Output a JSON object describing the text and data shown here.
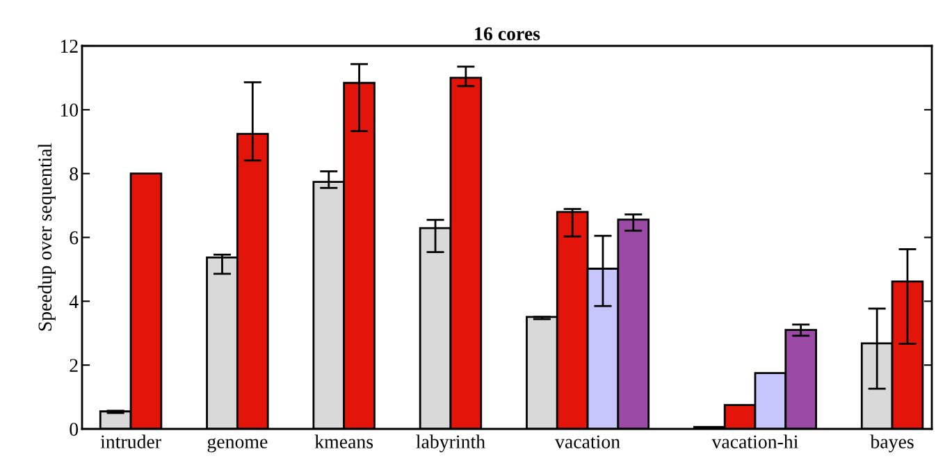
{
  "chart_data": {
    "type": "bar",
    "title": "16 cores",
    "ylabel": "Speedup over sequential",
    "categories": [
      "intruder",
      "genome",
      "kmeans",
      "labyrinth",
      "vacation",
      "vacation-hi",
      "bayes"
    ],
    "series": [
      {
        "color": "#d9d9d9",
        "values": [
          0.55,
          5.37,
          7.74,
          6.29,
          3.51,
          0.06,
          2.68
        ],
        "errors": [
          [
            0.5,
            0.57
          ],
          [
            4.86,
            5.46
          ],
          [
            7.55,
            8.07
          ],
          [
            5.54,
            6.55
          ],
          [
            3.44,
            3.51
          ],
          null,
          [
            1.26,
            3.77
          ]
        ]
      },
      {
        "color": "#e3140a",
        "values": [
          8.0,
          9.24,
          10.84,
          11.0,
          6.8,
          0.75,
          4.62
        ],
        "errors": [
          null,
          [
            8.41,
            10.86
          ],
          [
            9.33,
            11.43
          ],
          [
            10.74,
            11.35
          ],
          [
            6.03,
            6.89
          ],
          null,
          [
            2.67,
            5.63
          ]
        ]
      },
      {
        "color": "#c6c6fc",
        "values": [
          null,
          null,
          null,
          null,
          5.02,
          1.75,
          null
        ],
        "errors": [
          null,
          null,
          null,
          null,
          [
            3.85,
            6.05
          ],
          null,
          null
        ]
      },
      {
        "color": "#9b4aa6",
        "values": [
          null,
          null,
          null,
          null,
          6.56,
          3.1,
          null
        ],
        "errors": [
          null,
          null,
          null,
          null,
          [
            6.21,
            6.72
          ],
          [
            2.92,
            3.27
          ],
          null
        ]
      }
    ],
    "ylim": [
      0,
      12
    ],
    "yticks": [
      0,
      2,
      4,
      6,
      8,
      10,
      12
    ],
    "grid": false,
    "legend": false
  }
}
